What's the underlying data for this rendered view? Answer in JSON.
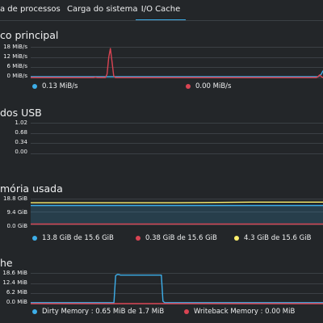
{
  "colors": {
    "background": "#232629",
    "grid": "#3b4045",
    "blue": "#3daee9",
    "red": "#da4453",
    "yellow": "#fdf06e",
    "accent": "#3daee9"
  },
  "tabs": [
    {
      "label": "a de processos"
    },
    {
      "label": "Carga do sistema"
    },
    {
      "label": "I/O  Cache"
    }
  ],
  "active_tab": "I/O  Cache",
  "chart_data": [
    {
      "type": "line",
      "title": "co principal",
      "y_ticks": [
        "18 MiB/s",
        "12 MiB/s",
        "6 MiB/s",
        "0 MiB/s"
      ],
      "ylim": [
        0,
        18
      ],
      "grid": true,
      "series": [
        {
          "name": "0.13 MiB/s",
          "color": "#3daee9",
          "values": [
            0.5,
            0.5,
            0.5,
            0.5,
            0.5,
            0.5,
            0.5,
            0.5,
            0.5,
            0.5,
            0.5,
            0.5,
            0.5,
            0.5,
            0.5,
            0.5,
            0.5,
            0.5,
            0.5,
            0.5,
            0.5,
            0.5,
            0.5,
            0.5,
            0.5,
            0.5,
            0.5,
            0.5,
            0.5,
            0.5,
            0.5,
            0.5,
            0.5,
            0.5,
            0.5,
            0.5,
            0.5,
            0.5,
            0.5,
            0.5,
            0.5,
            0.5,
            0.5,
            0.5,
            0.5,
            0.5,
            0.5,
            0.5,
            0.5,
            0.5,
            0.5,
            0.5,
            0.5,
            0.5,
            0.5,
            0.5,
            0.5,
            0.5,
            0.5,
            0.5,
            0.5,
            0.5,
            0.5,
            0.5,
            0.5,
            0.5,
            0.5,
            0.5,
            0.5,
            0.5,
            0.5,
            0.5,
            0.5,
            0.5,
            0.5,
            0.5,
            0.5,
            0.5,
            0.5,
            0.5,
            0.5,
            0.5,
            0.5,
            0.5,
            0.5,
            0.5,
            0.5,
            0.5,
            0.5,
            0.5,
            0.5,
            0.5,
            0.5,
            0.5,
            0.5,
            0.5,
            0.5,
            0.5,
            0.5,
            0.5,
            0.5,
            0.5,
            0.5,
            0.5,
            0.5,
            0.5,
            0.5,
            0.5,
            0.5,
            0.5,
            0.5,
            0.5,
            0.5,
            0.5,
            0.5,
            0.5,
            0.5,
            0.5,
            0.5,
            0.5,
            0.5,
            0.5,
            0.5,
            0.5,
            0.5,
            0.5,
            0.5,
            0.5,
            0.5,
            0.5,
            0.5,
            0.5,
            0.5,
            0.5,
            0.5,
            0.5,
            0.5,
            0.5,
            0.5,
            0.5,
            0.5,
            0.5,
            0.5,
            0.5,
            0.5,
            0.5,
            0.5,
            0.5,
            0.5,
            0.5,
            0.5,
            0.5,
            0.5,
            0.5,
            0.5,
            0.5,
            0.5,
            0.5,
            0.5,
            0.5,
            0.5,
            0.5,
            0.5,
            0.5,
            0.5,
            0.5,
            0.5,
            0.5,
            0.5,
            0.5,
            0.5,
            0.5,
            1.0,
            2.0,
            4.0
          ]
        },
        {
          "name": "0.00 MiB/s",
          "color": "#da4453",
          "values": [
            0,
            0,
            0,
            0,
            0,
            0,
            0,
            0,
            0,
            0,
            0,
            0,
            0,
            0,
            0,
            0,
            0,
            0,
            0,
            0,
            0,
            0,
            0,
            0,
            0,
            0,
            0,
            0,
            0,
            0,
            0,
            0,
            0,
            0,
            0,
            0,
            0,
            0,
            0,
            0.3,
            0,
            0,
            0,
            0,
            0,
            0,
            2.0,
            12.0,
            17.0,
            9.0,
            1.0,
            0,
            0,
            0,
            0,
            0,
            0,
            0,
            0,
            0,
            0,
            0,
            0,
            0,
            0,
            0,
            0,
            0,
            0,
            0,
            0,
            0,
            0,
            0,
            0,
            0,
            0,
            0,
            0,
            0,
            0,
            0,
            0,
            0,
            0,
            0,
            0,
            0,
            0,
            0,
            0,
            0,
            0,
            0,
            0,
            0,
            0,
            0,
            0,
            0,
            0,
            0,
            0,
            0,
            0,
            0,
            0,
            0,
            0,
            0,
            0,
            0,
            0,
            0,
            0,
            0,
            0,
            0,
            0,
            0,
            0,
            0,
            0,
            0,
            0,
            0,
            0,
            0,
            0,
            0,
            0,
            0,
            0,
            0,
            0,
            0,
            0,
            0,
            0,
            0,
            0,
            0,
            0,
            0,
            0,
            0,
            0,
            0,
            0,
            0,
            0,
            0,
            0,
            0,
            0,
            0,
            0,
            0,
            0,
            0,
            0,
            0,
            0,
            0,
            0,
            0,
            0,
            0,
            0,
            0,
            0,
            0,
            0,
            0.5,
            1.5,
            0.5,
            0
          ]
        }
      ]
    },
    {
      "type": "line",
      "title": "dos USB",
      "y_ticks": [
        "1.02",
        "0.68",
        "0.34",
        "0.00"
      ],
      "ylim": [
        0,
        1.02
      ],
      "grid": true,
      "series": []
    },
    {
      "type": "area",
      "title": "mória usada",
      "y_ticks": [
        "18.8 GiB",
        "9.4 GiB",
        "0.0 GiB"
      ],
      "ylim": [
        0,
        18.8
      ],
      "grid": true,
      "series": [
        {
          "name": "13.8 GiB de 15.6 GiB",
          "color": "#3daee9",
          "values": [
            13.8,
            13.8
          ]
        },
        {
          "name": "0.38 GiB de 15.6 GiB",
          "color": "#da4453",
          "values": [
            0.38,
            0.38
          ]
        },
        {
          "name": "4.3 GiB de 15.6 GiB",
          "color": "#fdf06e",
          "values": [
            15.8,
            15.8,
            15.8,
            16.3,
            16.3
          ]
        }
      ]
    },
    {
      "type": "line",
      "title": "he",
      "y_ticks": [
        "18.6 MiB",
        "12.4 MiB",
        "6.2 MiB",
        "0.0 MiB"
      ],
      "ylim": [
        0,
        18.6
      ],
      "grid": true,
      "series": [
        {
          "name": "Dirty Memory : 0.65 MiB de 1.7 MiB",
          "color": "#3daee9",
          "values": [
            0.6,
            0.6,
            0.6,
            0.6,
            0.6,
            0.6,
            0.6,
            0.6,
            0.6,
            0.6,
            0.6,
            0.6,
            0.6,
            0.6,
            0.6,
            0.6,
            0.6,
            0.6,
            0.6,
            0.6,
            0.6,
            0.6,
            0.6,
            0.6,
            0.6,
            0.6,
            0.6,
            0.6,
            0.6,
            0.6,
            0.6,
            0.6,
            0.6,
            0.6,
            0.6,
            0.6,
            0.6,
            0.6,
            0.6,
            0.6,
            0.6,
            0.6,
            0.6,
            0.6,
            0.6,
            0.6,
            0.6,
            0.6,
            0.6,
            0.6,
            0.6,
            0.6,
            17.0,
            17.6,
            17.6,
            17.3,
            17.3,
            17.3,
            17.3,
            17.3,
            17.3,
            17.3,
            17.3,
            17.3,
            17.3,
            17.3,
            17.3,
            17.3,
            17.3,
            17.3,
            17.3,
            17.3,
            17.3,
            17.3,
            17.3,
            17.3,
            17.3,
            17.3,
            17.3,
            17.3,
            17.3,
            1.5,
            0.6,
            0.6,
            0.6,
            0.6,
            0.6,
            0.6,
            0.6,
            0.6,
            0.6,
            0.6,
            0.6,
            0.6,
            0.6,
            0.6,
            0.6,
            0.6,
            0.6,
            0.6,
            0.6,
            0.6,
            0.6,
            0.6,
            0.6,
            0.6,
            0.6,
            0.6,
            0.6,
            0.6,
            0.6,
            0.6,
            0.6,
            0.6,
            0.6,
            0.6,
            0.6,
            0.6,
            0.6,
            0.6,
            0.6,
            0.6,
            0.6,
            0.6,
            0.6,
            0.6,
            0.6,
            0.6,
            0.6,
            0.6,
            0.6,
            0.6,
            0.6,
            0.6,
            0.6,
            0.6,
            0.6,
            0.6,
            0.6,
            0.6,
            0.6,
            0.6,
            0.6,
            0.6,
            0.6,
            0.6,
            0.6,
            0.6,
            0.6,
            0.6,
            0.6,
            0.6,
            0.6,
            0.6,
            0.6,
            0.6,
            0.6,
            0.6,
            0.6,
            0.6,
            0.6,
            0.6,
            0.6,
            0.6,
            0.6,
            0.6,
            0.6,
            0.6,
            0.6,
            0.6,
            0.6,
            0.6,
            0.6,
            0.6,
            0.6,
            0.6,
            0.6,
            0.6,
            0.6,
            0.6
          ]
        },
        {
          "name": "Writeback Memory : 0.00 MiB",
          "color": "#da4453",
          "values": [
            0,
            0
          ]
        }
      ]
    }
  ]
}
